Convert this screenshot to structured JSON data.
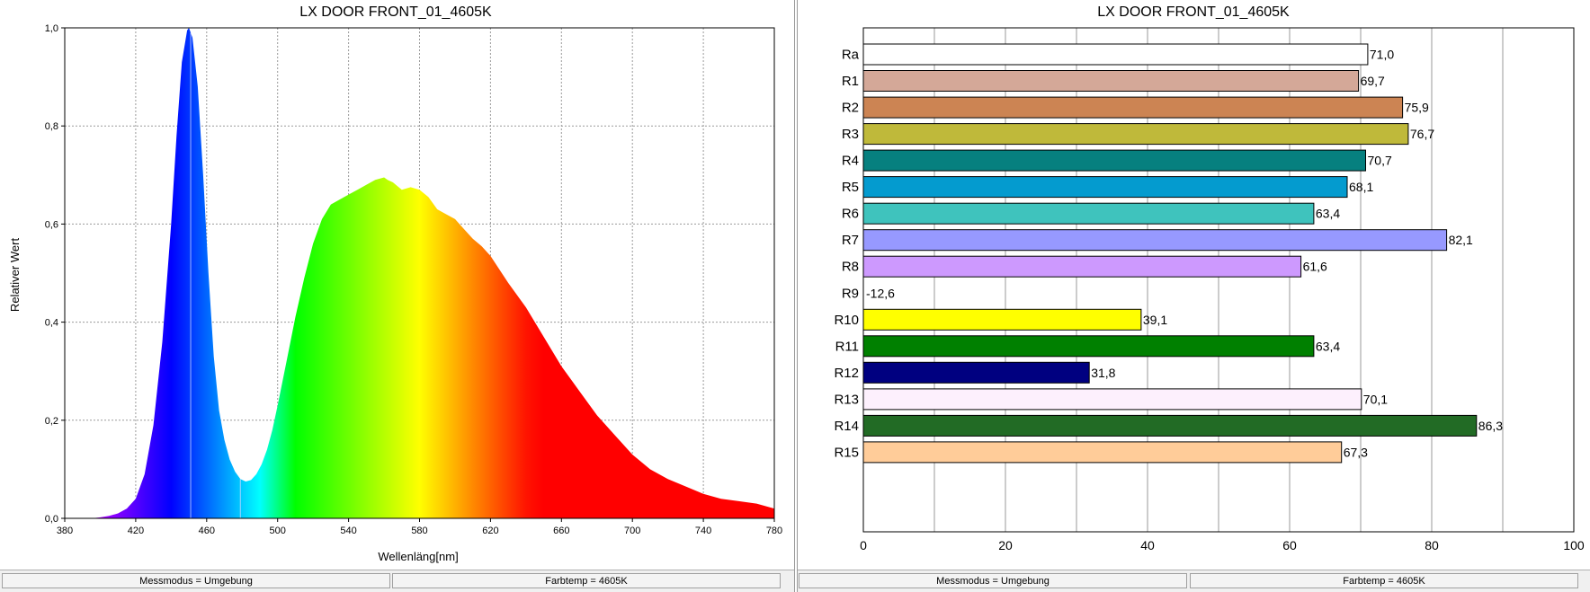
{
  "colors": {
    "background": "#ffffff",
    "grid": "#9a9a9a",
    "axis": "#000000"
  },
  "spectrum_chart": {
    "title": "LX DOOR FRONT_01_4605K",
    "chart_data": {
      "type": "area",
      "title": "LX DOOR FRONT_01_4605K",
      "xlabel": "Wellenläng[nm]",
      "ylabel": "Relativer Wert",
      "xlim": [
        380,
        780
      ],
      "ylim": [
        0,
        1.0
      ],
      "x_ticks": [
        "380",
        "420",
        "460",
        "500",
        "540",
        "580",
        "620",
        "660",
        "700",
        "740",
        "780"
      ],
      "y_ticks": [
        "0,0",
        "0,2",
        "0,4",
        "0,6",
        "0,8",
        "1,0"
      ],
      "grid": true,
      "fill": "wavelength-colored",
      "series": [
        {
          "x": [
            380,
            395,
            400,
            405,
            410,
            415,
            420,
            425,
            430,
            435,
            440,
            443,
            446,
            449,
            450,
            452,
            455,
            458,
            461,
            464,
            467,
            470,
            473,
            476,
            479,
            482,
            485,
            488,
            491,
            494,
            497,
            500,
            505,
            510,
            515,
            520,
            525,
            530,
            535,
            540,
            545,
            550,
            555,
            560,
            562,
            565,
            570,
            575,
            580,
            585,
            590,
            595,
            600,
            605,
            610,
            615,
            620,
            630,
            640,
            650,
            660,
            670,
            680,
            690,
            700,
            710,
            720,
            730,
            740,
            750,
            760,
            770,
            780
          ],
          "y": [
            0,
            0,
            0.002,
            0.005,
            0.01,
            0.02,
            0.04,
            0.09,
            0.19,
            0.36,
            0.6,
            0.78,
            0.93,
            0.995,
            1.0,
            0.98,
            0.88,
            0.7,
            0.5,
            0.33,
            0.22,
            0.16,
            0.12,
            0.095,
            0.08,
            0.075,
            0.078,
            0.09,
            0.11,
            0.14,
            0.18,
            0.23,
            0.32,
            0.41,
            0.49,
            0.56,
            0.61,
            0.64,
            0.65,
            0.66,
            0.67,
            0.68,
            0.69,
            0.695,
            0.69,
            0.685,
            0.67,
            0.675,
            0.67,
            0.655,
            0.63,
            0.62,
            0.61,
            0.59,
            0.57,
            0.555,
            0.535,
            0.48,
            0.43,
            0.37,
            0.31,
            0.26,
            0.21,
            0.17,
            0.13,
            0.1,
            0.08,
            0.065,
            0.05,
            0.04,
            0.035,
            0.03,
            0.02
          ]
        }
      ],
      "markers_x": [
        451,
        479
      ]
    },
    "status": {
      "left": "Messmodus = Umgebung",
      "right": "Farbtemp = 4605K"
    }
  },
  "cri_chart": {
    "title": "LX DOOR FRONT_01_4605K",
    "chart_data": {
      "type": "bar",
      "orientation": "horizontal",
      "title": "LX DOOR FRONT_01_4605K",
      "categories": [
        "Ra",
        "R1",
        "R2",
        "R3",
        "R4",
        "R5",
        "R6",
        "R7",
        "R8",
        "R9",
        "R10",
        "R11",
        "R12",
        "R13",
        "R14",
        "R15"
      ],
      "values": [
        71.0,
        69.7,
        75.9,
        76.7,
        70.7,
        68.1,
        63.4,
        82.1,
        61.6,
        -12.6,
        39.1,
        63.4,
        31.8,
        70.1,
        86.3,
        67.3
      ],
      "value_labels": [
        "71,0",
        "69,7",
        "75,9",
        "76,7",
        "70,7",
        "68,1",
        "63,4",
        "82,1",
        "61,6",
        "-12,6",
        "39,1",
        "63,4",
        "31,8",
        "70,1",
        "86,3",
        "67,3"
      ],
      "colors": [
        "#ffffff",
        "#d4a898",
        "#cc8453",
        "#bfb93a",
        "#06807f",
        "#049bcf",
        "#3fc3bd",
        "#9799ff",
        "#cd99fe",
        "#ff0000",
        "#ffff00",
        "#008000",
        "#000080",
        "#fdf0fd",
        "#226b25",
        "#ffcc99"
      ],
      "xlim": [
        0,
        100
      ],
      "x_ticks": [
        "0",
        "20",
        "40",
        "60",
        "80",
        "100"
      ],
      "grid": true
    },
    "status": {
      "left": "Messmodus = Umgebung",
      "right": "Farbtemp = 4605K"
    }
  }
}
